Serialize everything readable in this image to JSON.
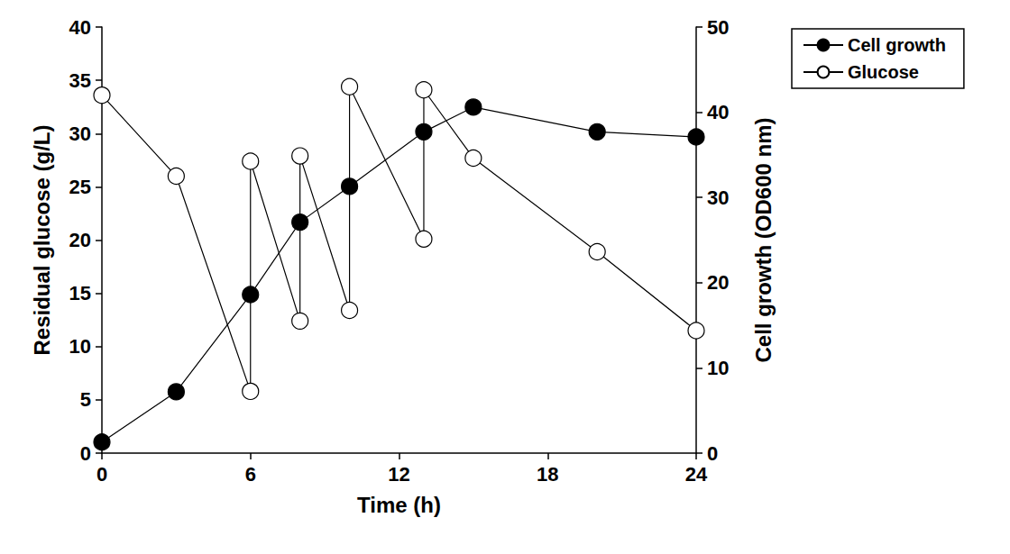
{
  "chart_data": {
    "type": "line",
    "x_label": "Time (h)",
    "y_label": "Residual glucose (g/L)",
    "y2_label": "Cell growth (OD600 nm)",
    "xlim": [
      0,
      24
    ],
    "xticks": [
      0,
      6,
      12,
      18,
      24
    ],
    "ylim": [
      0,
      40
    ],
    "yticks": [
      0,
      5,
      10,
      15,
      20,
      25,
      30,
      35,
      40
    ],
    "y2lim": [
      0,
      50
    ],
    "y2ticks": [
      0,
      10,
      20,
      30,
      40,
      50
    ],
    "grid": false,
    "legend": "upper right",
    "series": [
      {
        "name": "Cell growth",
        "color": "#000000",
        "marker": "filled_circle",
        "axis": "y2",
        "x": [
          0,
          3,
          6,
          8,
          10,
          13,
          15,
          20,
          24
        ],
        "values": [
          1.3,
          7.2,
          18.6,
          27.1,
          31.3,
          37.7,
          40.6,
          37.7,
          37.1
        ]
      },
      {
        "name": "Glucose",
        "color": "#000000",
        "marker": "open_circle",
        "axis": "y",
        "x": [
          0,
          3,
          6,
          6,
          8,
          8,
          10,
          10,
          13,
          13,
          15,
          20,
          24
        ],
        "values": [
          33.6,
          26.0,
          5.8,
          27.4,
          12.4,
          27.9,
          13.4,
          34.4,
          20.1,
          34.1,
          27.7,
          18.9,
          11.5
        ]
      }
    ]
  }
}
